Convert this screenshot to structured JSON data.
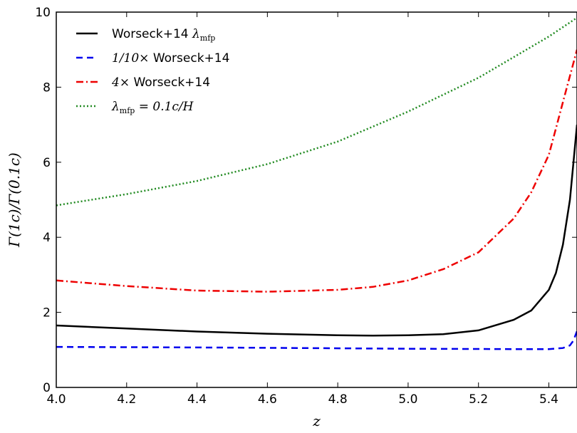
{
  "chart_data": {
    "type": "line",
    "xlabel": "z",
    "ylabel": "Γ(1c)/Γ(0.1c)",
    "xlim": [
      4.0,
      5.48
    ],
    "ylim": [
      0,
      10
    ],
    "x_ticks": [
      "4.0",
      "4.2",
      "4.4",
      "4.6",
      "4.8",
      "5.0",
      "5.2",
      "5.4"
    ],
    "y_ticks": [
      "0",
      "2",
      "4",
      "6",
      "8",
      "10"
    ],
    "legend_position": "top-left",
    "series": [
      {
        "name": "Worseck+14 λmfp",
        "label_main": "Worseck+14 ",
        "label_math": "λ",
        "label_sub": "mfp",
        "color": "#000000",
        "style": "solid",
        "x": [
          4.0,
          4.2,
          4.4,
          4.6,
          4.8,
          4.9,
          5.0,
          5.1,
          5.2,
          5.3,
          5.35,
          5.4,
          5.42,
          5.44,
          5.46,
          5.48
        ],
        "y": [
          1.65,
          1.57,
          1.49,
          1.43,
          1.39,
          1.38,
          1.39,
          1.42,
          1.52,
          1.8,
          2.05,
          2.6,
          3.05,
          3.8,
          5.0,
          7.0
        ]
      },
      {
        "name": "1/10× Worseck+14",
        "label_math": "1/10×",
        "label_main": " Worseck+14",
        "label_sub": "",
        "color": "#0000ee",
        "style": "dashed",
        "x": [
          4.0,
          4.5,
          5.0,
          5.3,
          5.4,
          5.44,
          5.46,
          5.47,
          5.48
        ],
        "y": [
          1.08,
          1.06,
          1.03,
          1.02,
          1.02,
          1.05,
          1.12,
          1.25,
          1.5
        ]
      },
      {
        "name": "4× Worseck+14",
        "label_math": "4×",
        "label_main": " Worseck+14",
        "label_sub": "",
        "color": "#ee0000",
        "style": "dashdot",
        "x": [
          4.0,
          4.2,
          4.4,
          4.6,
          4.8,
          4.9,
          5.0,
          5.1,
          5.2,
          5.3,
          5.35,
          5.4,
          5.42,
          5.44,
          5.46,
          5.48
        ],
        "y": [
          2.85,
          2.7,
          2.58,
          2.55,
          2.6,
          2.68,
          2.85,
          3.15,
          3.6,
          4.5,
          5.2,
          6.2,
          6.9,
          7.6,
          8.3,
          9.0
        ]
      },
      {
        "name": "λmfp = 0.1c/H",
        "label_math": "λ",
        "label_sub": "mfp",
        "label_main": " = 0.1c/H",
        "color": "#228b22",
        "style": "dotted",
        "x": [
          4.0,
          4.2,
          4.4,
          4.6,
          4.8,
          5.0,
          5.2,
          5.4,
          5.48
        ],
        "y": [
          4.85,
          5.15,
          5.5,
          5.95,
          6.55,
          7.35,
          8.25,
          9.35,
          9.85
        ]
      }
    ]
  }
}
